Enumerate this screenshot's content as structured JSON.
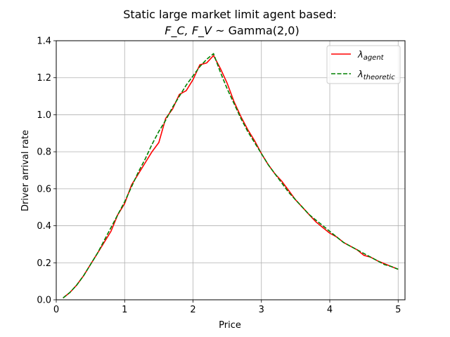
{
  "chart_data": {
    "type": "line",
    "title_line1": "Static large market limit agent based:",
    "title_line2_math": "F_C, F_V",
    "title_line2_rest": " ~ Gamma(2,0)",
    "xlabel": "Price",
    "ylabel": "Driver arrival rate",
    "xlim": [
      0,
      5.1
    ],
    "ylim": [
      0,
      1.4
    ],
    "xticks": [
      0,
      1,
      2,
      3,
      4,
      5
    ],
    "xtick_labels": [
      "0",
      "1",
      "2",
      "3",
      "4",
      "5"
    ],
    "yticks": [
      0.0,
      0.2,
      0.4,
      0.6,
      0.8,
      1.0,
      1.2,
      1.4
    ],
    "ytick_labels": [
      "0.0",
      "0.2",
      "0.4",
      "0.6",
      "0.8",
      "1.0",
      "1.2",
      "1.4"
    ],
    "grid": true,
    "legend_position": "top-right",
    "series": [
      {
        "name": "λ_agent",
        "legend_base": "λ",
        "legend_sub": "agent",
        "color": "#ff0000",
        "dash": "solid",
        "x": [
          0.1,
          0.2,
          0.3,
          0.4,
          0.5,
          0.6,
          0.7,
          0.8,
          0.9,
          1.0,
          1.1,
          1.2,
          1.3,
          1.4,
          1.5,
          1.6,
          1.7,
          1.8,
          1.9,
          2.0,
          2.1,
          2.2,
          2.3,
          2.4,
          2.5,
          2.6,
          2.7,
          2.8,
          2.9,
          3.0,
          3.1,
          3.2,
          3.3,
          3.4,
          3.5,
          3.6,
          3.7,
          3.8,
          3.9,
          4.0,
          4.1,
          4.2,
          4.3,
          4.4,
          4.5,
          4.6,
          4.7,
          4.8,
          4.9,
          5.0
        ],
        "y": [
          0.01,
          0.04,
          0.08,
          0.13,
          0.19,
          0.25,
          0.31,
          0.37,
          0.46,
          0.52,
          0.62,
          0.68,
          0.74,
          0.8,
          0.85,
          0.98,
          1.03,
          1.11,
          1.13,
          1.19,
          1.27,
          1.28,
          1.32,
          1.25,
          1.17,
          1.07,
          0.99,
          0.92,
          0.86,
          0.79,
          0.73,
          0.68,
          0.64,
          0.59,
          0.54,
          0.5,
          0.46,
          0.42,
          0.39,
          0.36,
          0.34,
          0.31,
          0.29,
          0.27,
          0.24,
          0.23,
          0.21,
          0.195,
          0.18,
          0.165
        ]
      },
      {
        "name": "λ_theoretic",
        "legend_base": "λ",
        "legend_sub": "theoretic",
        "color": "#008000",
        "dash": "dashed",
        "x": [
          0.1,
          0.2,
          0.3,
          0.4,
          0.5,
          0.6,
          0.7,
          0.8,
          0.9,
          1.0,
          1.1,
          1.2,
          1.3,
          1.4,
          1.5,
          1.6,
          1.7,
          1.8,
          1.9,
          2.0,
          2.1,
          2.2,
          2.3,
          2.4,
          2.5,
          2.6,
          2.7,
          2.8,
          2.9,
          3.0,
          3.1,
          3.2,
          3.3,
          3.4,
          3.5,
          3.6,
          3.7,
          3.8,
          3.9,
          4.0,
          4.1,
          4.2,
          4.3,
          4.4,
          4.5,
          4.6,
          4.7,
          4.8,
          4.9,
          5.0
        ],
        "y": [
          0.01,
          0.04,
          0.08,
          0.13,
          0.19,
          0.25,
          0.32,
          0.39,
          0.46,
          0.53,
          0.61,
          0.69,
          0.76,
          0.84,
          0.91,
          0.97,
          1.04,
          1.1,
          1.16,
          1.21,
          1.26,
          1.3,
          1.33,
          1.23,
          1.14,
          1.06,
          0.98,
          0.91,
          0.85,
          0.79,
          0.73,
          0.68,
          0.63,
          0.58,
          0.54,
          0.5,
          0.46,
          0.43,
          0.4,
          0.37,
          0.34,
          0.31,
          0.29,
          0.27,
          0.25,
          0.23,
          0.21,
          0.19,
          0.18,
          0.165
        ]
      }
    ]
  }
}
